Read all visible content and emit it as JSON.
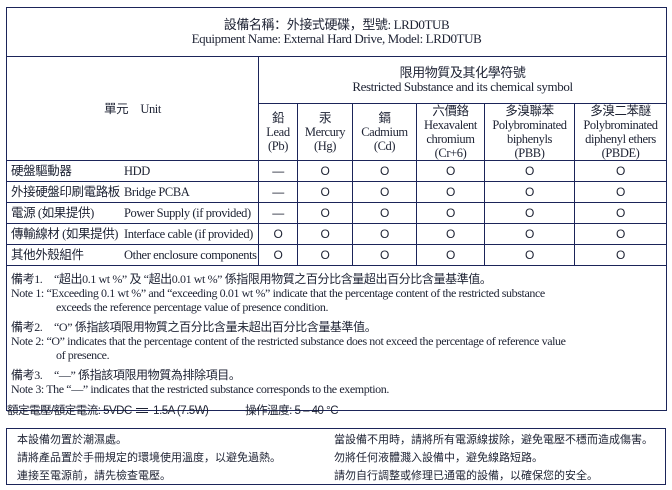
{
  "title": {
    "cn": "設備名稱：外接式硬碟，型號: LRD0TUB",
    "en": "Equipment Name: External Hard Drive, Model: LRD0TUB"
  },
  "header": {
    "unit_label": "單元　Unit",
    "restricted_cn": "限用物質及其化學符號",
    "restricted_en": "Restricted Substance and its chemical symbol",
    "substances": [
      {
        "cn": "鉛",
        "en": "Lead",
        "symbol": "(Pb)"
      },
      {
        "cn": "汞",
        "en": "Mercury",
        "symbol": "(Hg)"
      },
      {
        "cn": "鎘",
        "en": "Cadmium",
        "symbol": "(Cd)"
      },
      {
        "cn": "六價鉻",
        "en": "Hexavalent chromium",
        "symbol": "(Cr+6)"
      },
      {
        "cn": "多溴聯苯",
        "en": "Polybrominated biphenyls",
        "symbol": "(PBB)"
      },
      {
        "cn": "多溴二苯醚",
        "en": "Polybrominated diphenyl ethers",
        "symbol": "(PBDE)"
      }
    ]
  },
  "rows": [
    {
      "cn": "硬盤驅動器",
      "en": "HDD",
      "values": [
        "—",
        "O",
        "O",
        "O",
        "O",
        "O"
      ]
    },
    {
      "cn": "外接硬盤印刷電路板",
      "en": "Bridge PCBA",
      "values": [
        "—",
        "O",
        "O",
        "O",
        "O",
        "O"
      ]
    },
    {
      "cn": "電源 (如果提供)",
      "en": "Power Supply (if provided)",
      "values": [
        "—",
        "O",
        "O",
        "O",
        "O",
        "O"
      ]
    },
    {
      "cn": "傳輸線材 (如果提供)",
      "en": "Interface cable (if provided)",
      "values": [
        "O",
        "O",
        "O",
        "O",
        "O",
        "O"
      ]
    },
    {
      "cn": "其他外殼組件",
      "en": "Other enclosure components",
      "values": [
        "O",
        "O",
        "O",
        "O",
        "O",
        "O"
      ]
    }
  ],
  "notes": [
    {
      "cn": "備考1.　“超出0.1 wt %” 及 “超出0.01 wt %” 係指限用物質之百分比含量超出百分比含量基準值。",
      "en": "Note 1:  “Exceeding 0.1 wt %” and  “exceeding 0.01 wt %” indicate that the percentage content of the restricted substance",
      "en2": "exceeds the reference percentage value of presence condition."
    },
    {
      "cn": "備考2.　“O” 係指該項限用物質之百分比含量未超出百分比含量基準值。",
      "en": "Note 2:  “O”  indicates that the percentage content of the restricted substance does not exceed the percentage of reference value",
      "en2": "of presence."
    },
    {
      "cn": "備考3.　“—” 係指該項限用物質為排除項目。",
      "en": "Note 3:  The “—” indicates that the restricted substance corresponds to the exemption.",
      "en2": ""
    }
  ],
  "rating": {
    "power_pre": "額定電壓/額定電流: 5VDC",
    "power_post": "1.5A (7.5W)",
    "temp": "操作溫度: 5 – 40 °C"
  },
  "safety": {
    "left": [
      "本設備勿置於潮濕處。",
      "請將產品置於手冊規定的環境使用溫度，以避免過熱。",
      "連接至電源前，請先檢查電壓。"
    ],
    "right": [
      "當設備不用時，請將所有電源線拔除，避免電壓不穩而造成傷害。",
      "勿將任何液體濺入設備中，避免線路短路。",
      "請勿自行調整或修理已通電的設備，以確保您的安全。"
    ]
  },
  "colors": {
    "border": "#1b2459",
    "text": "#1d2233"
  }
}
